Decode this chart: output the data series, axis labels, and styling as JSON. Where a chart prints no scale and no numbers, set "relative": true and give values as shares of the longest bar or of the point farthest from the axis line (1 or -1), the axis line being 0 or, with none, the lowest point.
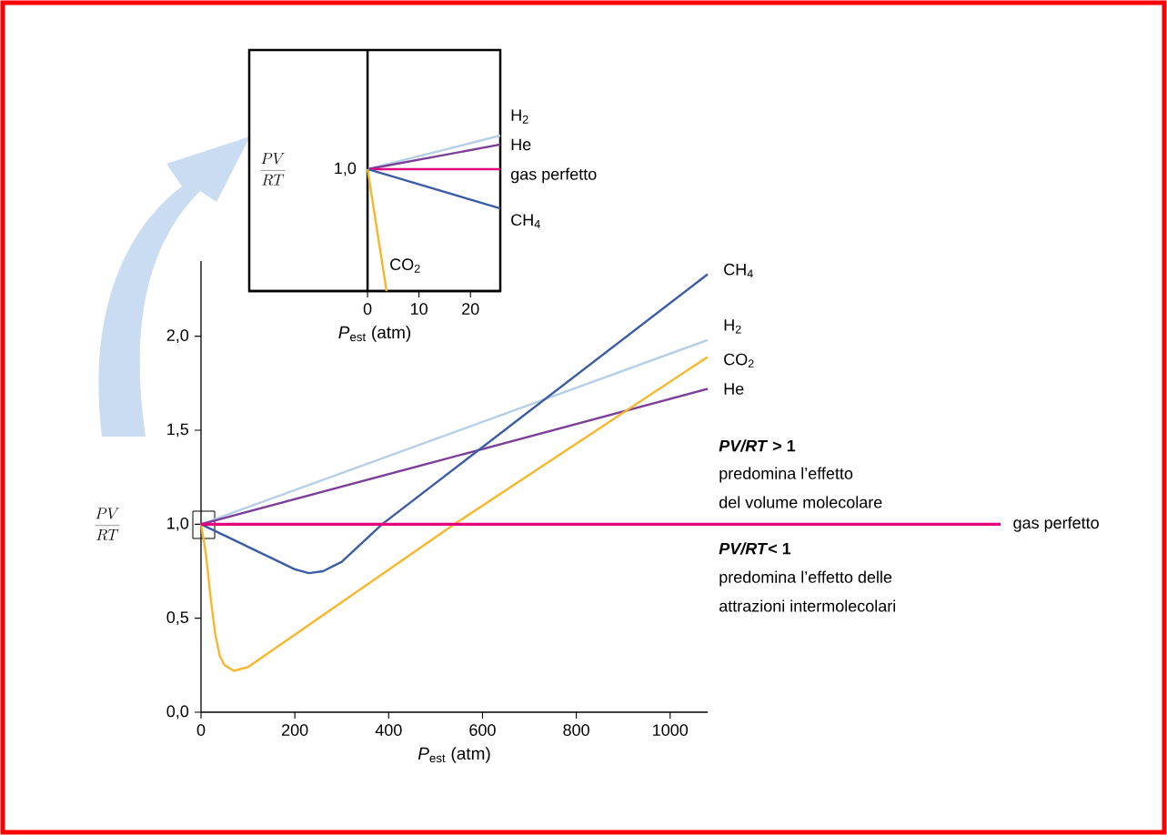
{
  "chart_data": [
    {
      "type": "line",
      "xlabel": "*P*$_{est}$ (atm)",
      "ylabel": "\\frac{PV}{RT}",
      "xlim": [
        0,
        1080
      ],
      "ylim": [
        0,
        2.4
      ],
      "xticks": [
        0,
        200,
        400,
        600,
        800,
        1000
      ],
      "yticks": [
        {
          "value": 0,
          "label": "0,0"
        },
        {
          "value": 0.5,
          "label": "0,5"
        },
        {
          "value": 1,
          "label": "1,0"
        },
        {
          "value": 1.5,
          "label": "1,5"
        },
        {
          "value": 2,
          "label": "2,0"
        }
      ],
      "series": [
        {
          "name": "H$_{2}$",
          "color": "#b7cfe6",
          "x": [
            0,
            1080
          ],
          "values": [
            1,
            1.98
          ]
        },
        {
          "name": "He",
          "color": "#7b3f98",
          "x": [
            0,
            1080
          ],
          "values": [
            1,
            1.72
          ]
        },
        {
          "name": "CO$_{2}$",
          "color": "#f8b72a",
          "x": [
            0,
            10,
            20,
            30,
            40,
            50,
            70,
            100,
            540,
            1080
          ],
          "values": [
            1,
            0.85,
            0.62,
            0.42,
            0.3,
            0.25,
            0.22,
            0.24,
            1.0,
            1.89
          ]
        },
        {
          "name": "CH$_{4}$",
          "color": "#3b5ca7",
          "x": [
            0,
            100,
            200,
            230,
            260,
            300,
            386,
            1080
          ],
          "values": [
            1,
            0.88,
            0.76,
            0.74,
            0.75,
            0.8,
            1.0,
            2.33
          ]
        }
      ],
      "ref_lines": [
        {
          "axis": "y",
          "value": 1,
          "label": "gas perfetto",
          "color": "#e5007d"
        }
      ],
      "annotations": [
        "*PV/RT* > 1",
        "predomina l’effetto",
        "del volume molecolare",
        "*PV/RT*< 1",
        "predomina l’effetto delle",
        "attrazioni intermolecolari"
      ]
    },
    {
      "type": "line",
      "relative": true,
      "xlabel": "*P*$_{est}$ (atm)",
      "ylabel": "\\frac{PV}{RT}",
      "xlim": [
        -23,
        25.8
      ],
      "xticks": [
        0,
        10,
        20
      ],
      "annotations": [
        {
          "text": "1,0",
          "x": 0,
          "y": 0.784
        }
      ],
      "series": [
        {
          "name": "H$_{2}$",
          "color": "#b7cfe6",
          "x": [
            0,
            25.8
          ],
          "values": [
            0.784,
            1
          ]
        },
        {
          "name": "He",
          "color": "#7b3f98",
          "x": [
            0,
            25.8
          ],
          "values": [
            0.784,
            0.942
          ]
        },
        {
          "name": "gas perfetto",
          "color": "#e5007d",
          "x": [
            0,
            25.8
          ],
          "values": [
            0.784,
            0.784
          ]
        },
        {
          "name": "CH$_{4}$",
          "color": "#3b5ca7",
          "x": [
            0,
            25.8
          ],
          "values": [
            0.784,
            0.532
          ]
        },
        {
          "name": "CO$_{2}$",
          "color": "#f8b72a",
          "x": [
            0,
            3.7
          ],
          "values": [
            0.784,
            0
          ]
        }
      ]
    }
  ]
}
